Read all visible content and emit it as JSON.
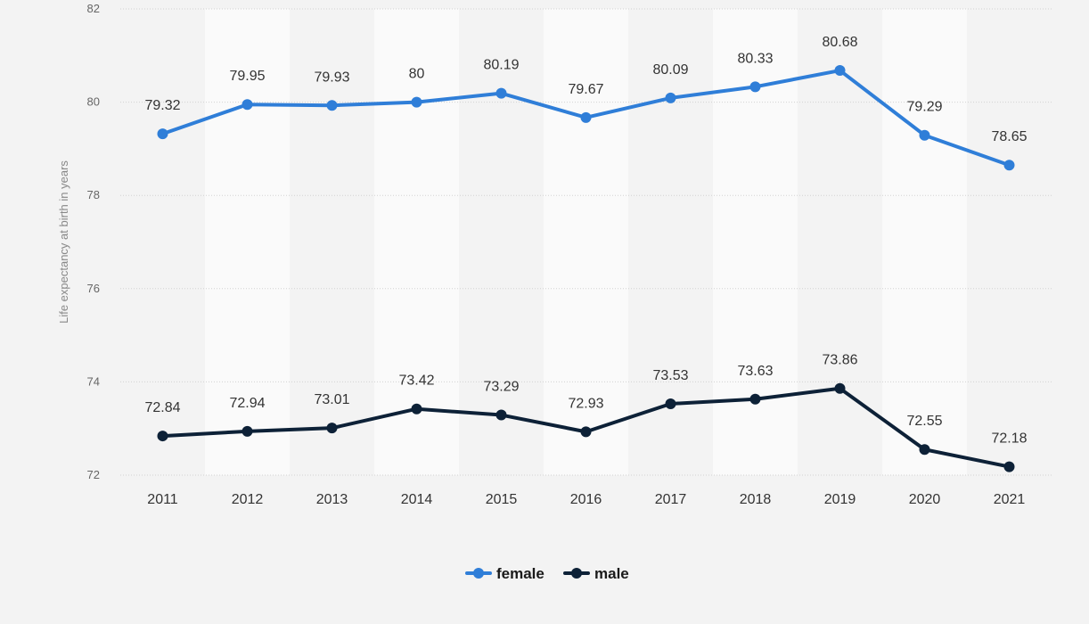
{
  "chart_data": {
    "type": "line",
    "title": "",
    "xlabel": "",
    "ylabel": "Life expectancy at birth in years",
    "categories": [
      "2011",
      "2012",
      "2013",
      "2014",
      "2015",
      "2016",
      "2017",
      "2018",
      "2019",
      "2020",
      "2021"
    ],
    "series": [
      {
        "name": "female",
        "color": "#2f7ed8",
        "values": [
          79.32,
          79.95,
          79.93,
          80,
          80.19,
          79.67,
          80.09,
          80.33,
          80.68,
          79.29,
          78.65
        ],
        "labels": [
          "79.32",
          "79.95",
          "79.93",
          "80",
          "80.19",
          "79.67",
          "80.09",
          "80.33",
          "80.68",
          "79.29",
          "78.65"
        ]
      },
      {
        "name": "male",
        "color": "#0d2137",
        "values": [
          72.84,
          72.94,
          73.01,
          73.42,
          73.29,
          72.93,
          73.53,
          73.63,
          73.86,
          72.55,
          72.18
        ],
        "labels": [
          "72.84",
          "72.94",
          "73.01",
          "73.42",
          "73.29",
          "72.93",
          "73.53",
          "73.63",
          "73.86",
          "72.55",
          "72.18"
        ]
      }
    ],
    "ylim": [
      72,
      82
    ],
    "yticks": [
      "72",
      "74",
      "76",
      "78",
      "80",
      "82"
    ],
    "grid": true,
    "legend": "bottom-center"
  }
}
